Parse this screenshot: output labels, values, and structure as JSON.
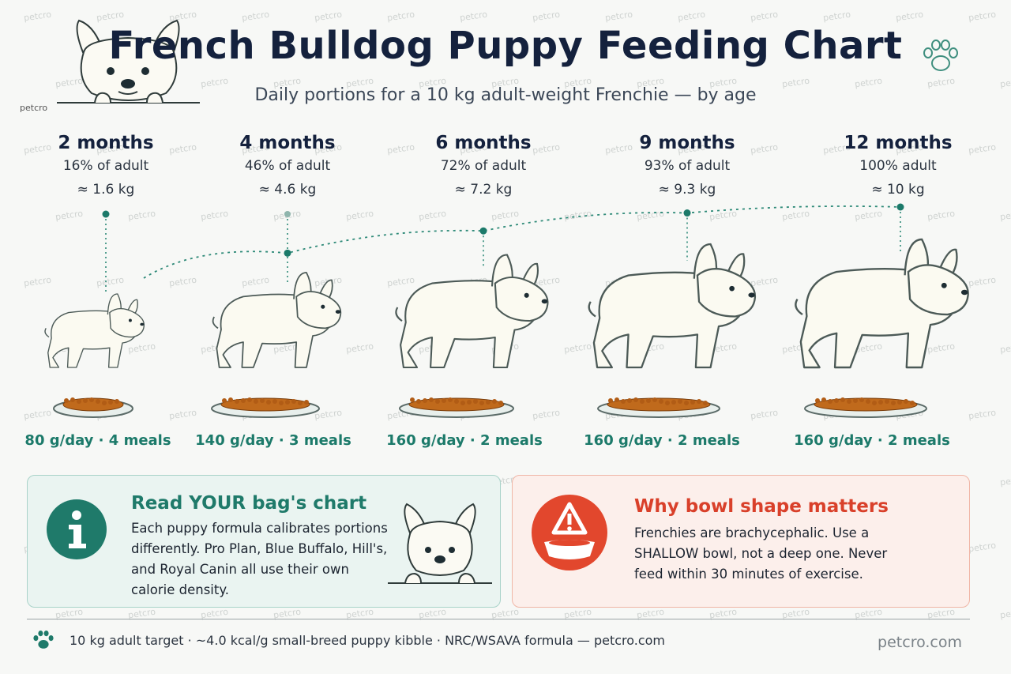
{
  "header": {
    "title": "French Bulldog Puppy Feeding Chart",
    "subtitle": "Daily portions for a 10 kg adult-weight Frenchie — by age",
    "logo_text": "petcro"
  },
  "chart_data": {
    "type": "line",
    "x": [
      "2 months",
      "4 months",
      "6 months",
      "9 months",
      "12 months"
    ],
    "series": [
      {
        "values": [
          16,
          46,
          72,
          93,
          100
        ]
      }
    ],
    "adult_percent_labels": [
      "16% of adult",
      "46% of adult",
      "72% of adult",
      "93% of adult",
      "100% adult"
    ],
    "weight_labels": [
      "≈ 1.6 kg",
      "≈ 4.6 kg",
      "≈ 7.2 kg",
      "≈ 9.3 kg",
      "≈ 10 kg"
    ],
    "portion_labels": [
      "80 g/day · 4 meals",
      "140 g/day · 3 meals",
      "160 g/day · 2 meals",
      "160 g/day · 2 meals",
      "160 g/day · 2 meals"
    ],
    "ylim": [
      0,
      100
    ]
  },
  "info_panel": {
    "title": "Read YOUR bag's chart",
    "lines": [
      "Each puppy formula calibrates portions",
      "differently. Pro Plan, Blue Buffalo, Hill's,",
      "and Royal Canin all use their own",
      "calorie density."
    ],
    "icon": "info-icon",
    "color": "#1f7a6a"
  },
  "warning_panel": {
    "title": "Why bowl shape matters",
    "lines": [
      "Frenchies are brachycephalic. Use a",
      "SHALLOW bowl, not a deep one. Never",
      "feed within 30 minutes of exercise."
    ],
    "icon": "warning-bowl-icon",
    "color": "#d9402a"
  },
  "footer": {
    "text": "10 kg adult target · ~4.0 kcal/g small-breed puppy kibble · NRC/WSAVA formula — petcro.com",
    "brand": "petcro.com",
    "icon": "paw-icon"
  },
  "colors": {
    "accent": "#1c7a6a",
    "warning": "#d9402a",
    "title": "#14213d"
  }
}
